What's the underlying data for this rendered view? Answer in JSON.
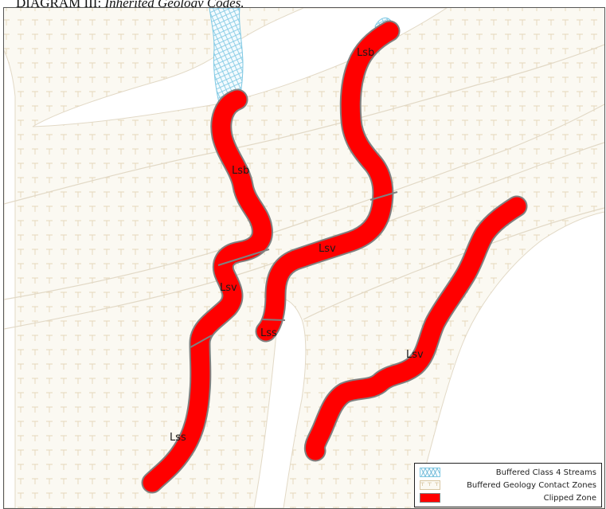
{
  "caption": {
    "prefix": "DIAGRAM III:",
    "text": "Inherited Geology Codes."
  },
  "map": {
    "colors": {
      "contact_zone_fill": "#fbf9f2",
      "contact_zone_stroke": "#e2d9c6",
      "contact_zone_symbol": "#e5d6ba",
      "stream_hatch": "#7ec8e3",
      "clipped_fill": "#ff0000",
      "clipped_stroke": "#808080"
    },
    "zone_labels": [
      {
        "id": "lsb-top",
        "text": "Lsb"
      },
      {
        "id": "lsb-left",
        "text": "Lsb"
      },
      {
        "id": "lsv-center",
        "text": "Lsv"
      },
      {
        "id": "lsv-left",
        "text": "Lsv"
      },
      {
        "id": "lss-center",
        "text": "Lss"
      },
      {
        "id": "lsv-right",
        "text": "Lsv"
      },
      {
        "id": "lss-left",
        "text": "Lss"
      }
    ]
  },
  "legend": {
    "items": [
      {
        "label": "Buffered Class 4 Streams",
        "icon": "cross-hatch-swatch"
      },
      {
        "label": "Buffered Geology Contact Zones",
        "icon": "t-pattern-swatch"
      },
      {
        "label": "Clipped Zone",
        "icon": "red-fill-swatch"
      }
    ]
  }
}
